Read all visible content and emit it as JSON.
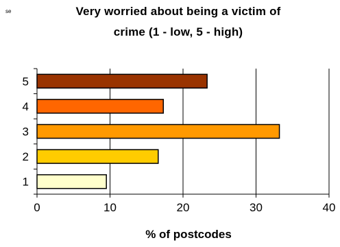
{
  "corner_text": "se",
  "chart_data": {
    "type": "bar",
    "orientation": "horizontal",
    "title": "Very worried about being a victim of crime (1 - low, 5 - high)",
    "title_lines": [
      "Very worried about being a victim of",
      "crime (1 - low, 5 - high)"
    ],
    "xlabel": "% of postcodes",
    "ylabel": "",
    "categories": [
      "1",
      "2",
      "3",
      "4",
      "5"
    ],
    "values": [
      9.5,
      16.6,
      33.2,
      17.3,
      23.3
    ],
    "colors": [
      "#FFFFCC",
      "#FFCC00",
      "#FF9900",
      "#FF6600",
      "#993300"
    ],
    "xlim": [
      0,
      40
    ],
    "xticks": [
      "0",
      "10",
      "20",
      "30",
      "40"
    ],
    "grid": true,
    "legend": "none"
  }
}
